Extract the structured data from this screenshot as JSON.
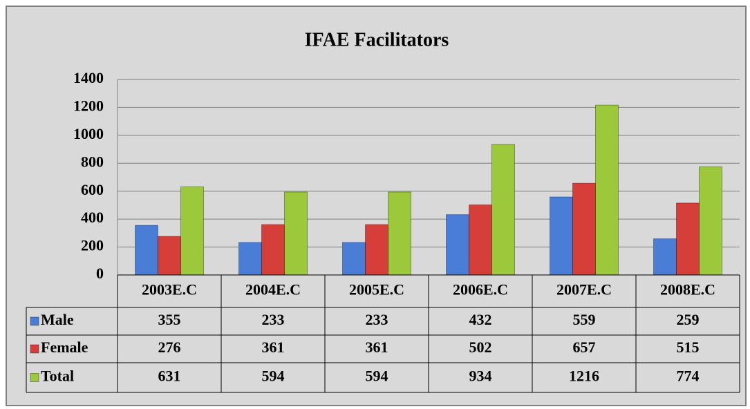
{
  "chart_data": {
    "type": "bar",
    "title": "IFAE Facilitators",
    "categories": [
      "2003E.C",
      "2004E.C",
      "2005E.C",
      "2006E.C",
      "2007E.C",
      "2008E.C"
    ],
    "series": [
      {
        "name": "Male",
        "color": "#4a7ed6",
        "values": [
          355,
          233,
          233,
          432,
          559,
          259
        ]
      },
      {
        "name": "Female",
        "color": "#d63e3a",
        "values": [
          276,
          361,
          361,
          502,
          657,
          515
        ]
      },
      {
        "name": "Total",
        "color": "#9cc83c",
        "values": [
          631,
          594,
          594,
          934,
          1216,
          774
        ]
      }
    ],
    "ylim": [
      0,
      1400
    ],
    "yticks": [
      0,
      200,
      400,
      600,
      800,
      1000,
      1200,
      1400
    ],
    "grid": true
  }
}
